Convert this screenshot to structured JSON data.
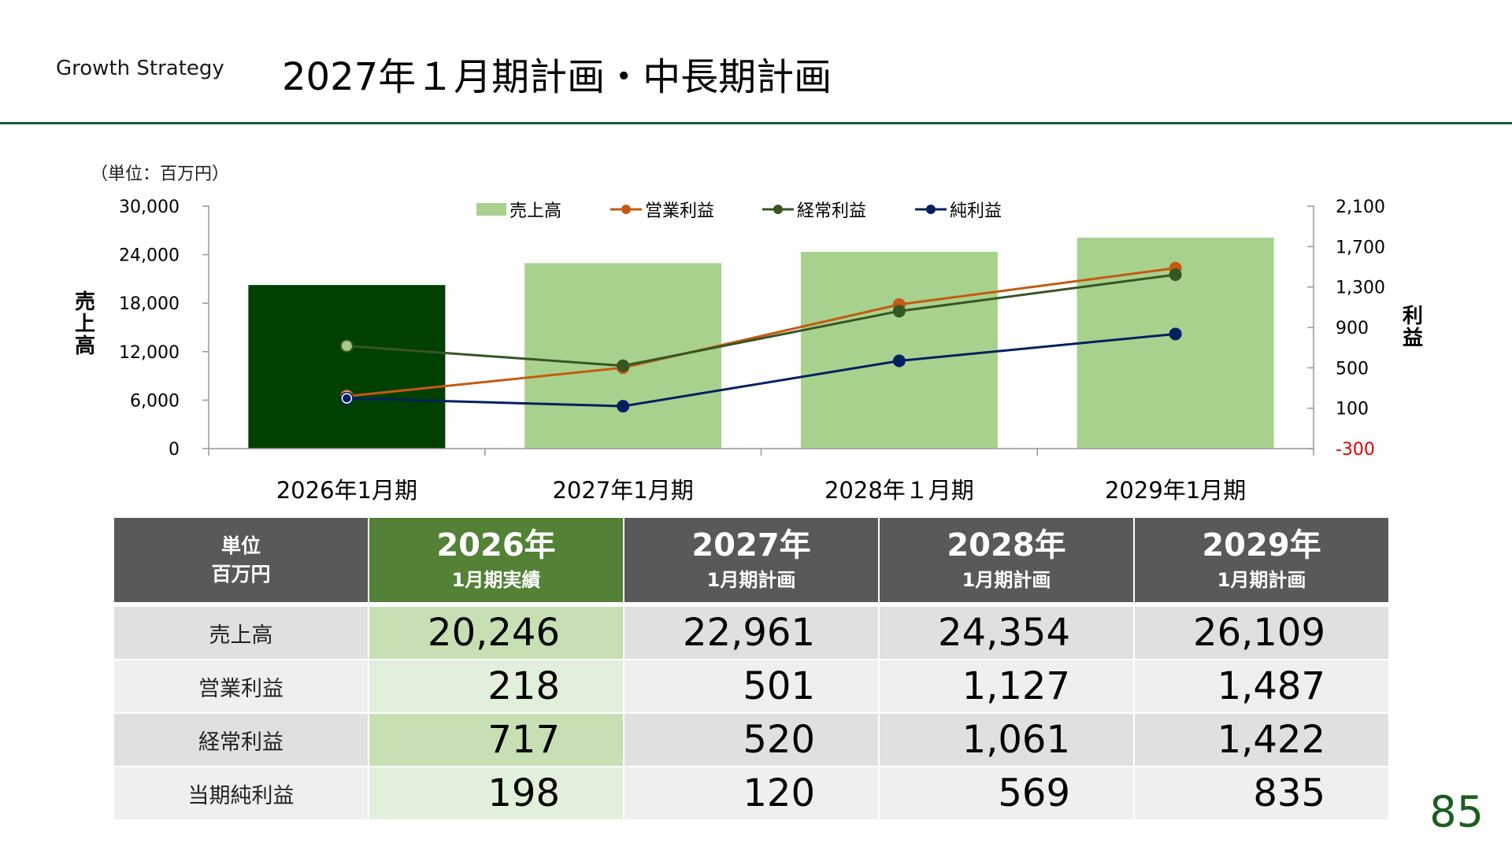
{
  "header": {
    "section_label": "Growth Strategy",
    "title": "2027年１月期計画・中長期計画"
  },
  "unit_label": "（単位：百万円）",
  "page_number": "85",
  "colors": {
    "bar_actual": "#004000",
    "bar_plan": "#a9d18e",
    "operating_profit": "#c55a11",
    "ordinary_profit": "#375623",
    "net_profit": "#002060",
    "header_rule": "#1f5a3a",
    "negative_tick": "#e00000"
  },
  "chart_data": {
    "type": "bar",
    "categories": [
      "2026年1月期",
      "2027年1月期",
      "2028年１月期",
      "2029年1月期"
    ],
    "y_left": {
      "label": "売上高",
      "ticks": [
        "0",
        "6,000",
        "12,000",
        "18,000",
        "24,000",
        "30,000"
      ],
      "range": [
        0,
        30000
      ]
    },
    "y_right": {
      "label": "利益",
      "ticks": [
        "-300",
        "100",
        "500",
        "900",
        "1,300",
        "1,700",
        "2,100"
      ],
      "range": [
        -300,
        2100
      ]
    },
    "legend_position": "top",
    "series": [
      {
        "name": "売上高",
        "type": "bar",
        "axis": "left",
        "values": [
          20246,
          22961,
          24354,
          26109
        ]
      },
      {
        "name": "営業利益",
        "type": "line",
        "axis": "right",
        "values": [
          218,
          501,
          1127,
          1487
        ]
      },
      {
        "name": "経常利益",
        "type": "line",
        "axis": "right",
        "values": [
          717,
          520,
          1061,
          1422
        ]
      },
      {
        "name": "純利益",
        "type": "line",
        "axis": "right",
        "values": [
          198,
          120,
          569,
          835
        ]
      }
    ]
  },
  "table": {
    "unit_header_line1": "単位",
    "unit_header_line2": "百万円",
    "columns": [
      {
        "year": "2026年",
        "sub": "1月期実績"
      },
      {
        "year": "2027年",
        "sub": "1月期計画"
      },
      {
        "year": "2028年",
        "sub": "1月期計画"
      },
      {
        "year": "2029年",
        "sub": "1月期計画"
      }
    ],
    "rows": [
      {
        "label": "売上高",
        "values": [
          "20,246",
          "22,961",
          "24,354",
          "26,109"
        ]
      },
      {
        "label": "営業利益",
        "values": [
          "218",
          "501",
          "1,127",
          "1,487"
        ]
      },
      {
        "label": "経常利益",
        "values": [
          "717",
          "520",
          "1,061",
          "1,422"
        ]
      },
      {
        "label": "当期純利益",
        "values": [
          "198",
          "120",
          "569",
          "835"
        ]
      }
    ]
  }
}
